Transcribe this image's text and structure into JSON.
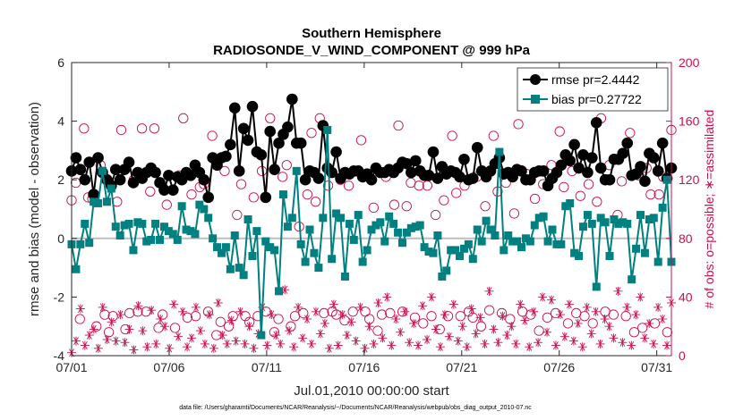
{
  "chart_data": {
    "type": "line",
    "title": "Southern Hemisphere",
    "subtitle": "RADIOSONDE_V_WIND_COMPONENT @ 999 hPa",
    "xlabel": "Jul.01,2010 00:00:00 start",
    "ylabel": "rmse and bias (model - observation)",
    "y2label": "# of obs: o=possible; ∗=assimilated",
    "footnote": "data file: /Users/gharamti/Documents/NCAR/Reanalysis/~/Documents/NCAR/Reanalysis/webpub/obs_diag_output_2010-07.nc",
    "xlim": [
      0,
      30.75
    ],
    "ylim": [
      -4,
      6
    ],
    "y2lim": [
      0,
      200
    ],
    "x_ticks": [
      0,
      5,
      10,
      15,
      20,
      25,
      30
    ],
    "x_tick_labels": [
      "07/01",
      "07/06",
      "07/11",
      "07/16",
      "07/21",
      "07/26",
      "07/31"
    ],
    "y_ticks": [
      "-4",
      "-2",
      "0",
      "2",
      "4",
      "6"
    ],
    "y2_ticks": [
      "0",
      "40",
      "80",
      "120",
      "160",
      "200"
    ],
    "zero_line": 0,
    "legend": [
      "rmse pr=2.4442",
      "bias pr=0.27722"
    ],
    "series": [
      {
        "name": "rmse pr=2.4442",
        "color": "#000000",
        "marker": "circle",
        "values": [
          2.3,
          2.75,
          2.35,
          2.0,
          2.6,
          1.5,
          2.75,
          2.25,
          2.0,
          1.8,
          2.35,
          2.0,
          2.35,
          2.6,
          1.9,
          2.25,
          2.05,
          2.25,
          2.4,
          2.25,
          1.9,
          1.65,
          2.15,
          1.65,
          2.1,
          2.0,
          2.25,
          2.15,
          2.5,
          2.25,
          2.0,
          1.4,
          2.75,
          2.5,
          2.75,
          2.8,
          3.2,
          4.45,
          2.3,
          3.75,
          3.35,
          4.5,
          2.95,
          2.85,
          1.4,
          3.65,
          2.35,
          3.25,
          3.55,
          3.8,
          4.75,
          3.25,
          3.25,
          2.0,
          2.3,
          2.25,
          2.05,
          3.85,
          2.4,
          2.25,
          2.95,
          2.05,
          2.25,
          2.2,
          2.3,
          2.3,
          2.1,
          2.2,
          2.0,
          2.4,
          2.25,
          2.25,
          2.35,
          2.25,
          2.4,
          2.6,
          2.55,
          2.25,
          2.65,
          2.3,
          2.15,
          2.15,
          2.95,
          2.05,
          2.45,
          2.2,
          2.3,
          2.25,
          2.1,
          2.7,
          2.0,
          2.05,
          3.1,
          2.3,
          2.1,
          2.3,
          2.55,
          2.75,
          2.2,
          2.25,
          2.1,
          2.35,
          2.3,
          2.0,
          2.0,
          2.25,
          2.3,
          2.3,
          1.8,
          2.05,
          2.25,
          2.5,
          2.85,
          2.65,
          3.2,
          2.4,
          2.85,
          2.25,
          2.75,
          3.95,
          2.4,
          2.0,
          2.0,
          2.7,
          2.7,
          2.9,
          3.25,
          2.15,
          2.2,
          2.45,
          1.95,
          2.9,
          2.75,
          2.3,
          3.25,
          2.05,
          2.4
        ]
      },
      {
        "name": "bias pr=0.27722",
        "color": "#008080",
        "marker": "square",
        "values": [
          -0.2,
          -1.05,
          -0.2,
          0.5,
          -0.15,
          1.25,
          1.2,
          2.3,
          1.25,
          1.7,
          0.4,
          0.1,
          0.45,
          0.5,
          -0.4,
          0.55,
          0.5,
          -0.1,
          -0.05,
          0.5,
          -0.05,
          0.4,
          0.25,
          0.15,
          -0.05,
          1.1,
          0.3,
          0.25,
          0.15,
          1.15,
          1.0,
          0.7,
          0.0,
          -0.3,
          -0.5,
          -0.3,
          -1.05,
          0.1,
          -1.0,
          -1.25,
          0.65,
          -0.6,
          0.25,
          -3.3,
          -0.1,
          -0.3,
          -0.4,
          -1.8,
          1.5,
          0.4,
          0.7,
          2.3,
          -0.2,
          -0.8,
          0.3,
          -0.5,
          -1.0,
          0.7,
          3.7,
          -0.7,
          0.85,
          0.7,
          -1.3,
          0.5,
          -0.05,
          0.8,
          -0.8,
          -0.4,
          0.3,
          0.45,
          0.55,
          -0.1,
          0.75,
          0.5,
          0.2,
          -0.15,
          0.2,
          0.35,
          0.4,
          0.45,
          -0.3,
          -0.45,
          -0.5,
          0.1,
          -1.3,
          -1.1,
          -0.4,
          -0.4,
          -0.6,
          -0.35,
          -0.2,
          -0.7,
          0.3,
          -0.1,
          0.6,
          0.3,
          0.1,
          2.95,
          -0.4,
          0.1,
          -0.1,
          -0.1,
          -0.3,
          0.0,
          -0.1,
          0.45,
          0.7,
          0.75,
          -0.1,
          0.3,
          -0.2,
          -0.2,
          1.1,
          1.2,
          -0.5,
          -0.6,
          0.4,
          0.8,
          0.5,
          -1.65,
          0.7,
          0.55,
          -0.6,
          0.65,
          0.5,
          0.55,
          0.5,
          -1.4,
          -0.35,
          0.8,
          -0.5,
          0.65,
          0.7,
          -0.8,
          1.05,
          2.0,
          -0.8
        ]
      }
    ],
    "obs_possible": {
      "name": "possible",
      "marker": "open-circle",
      "color": "#c8104f",
      "values": [
        106,
        118,
        25,
        155,
        108,
        107,
        20,
        130,
        28,
        16,
        27,
        105,
        154,
        18,
        29,
        120,
        30,
        155,
        30,
        112,
        155,
        19,
        28,
        103,
        118,
        19,
        123,
        162,
        26,
        110,
        27,
        115,
        117,
        30,
        150,
        14,
        23,
        126,
        20,
        27,
        96,
        117,
        27,
        23,
        108,
        27,
        126,
        30,
        162,
        16,
        25,
        122,
        130,
        20,
        27,
        88,
        29,
        110,
        152,
        105,
        162,
        29,
        116,
        30,
        28,
        120,
        24,
        116,
        30,
        126,
        147,
        30,
        25,
        101,
        17,
        28,
        122,
        29,
        103,
        157,
        30,
        102,
        118,
        26,
        116,
        22,
        116,
        27,
        96,
        18,
        106,
        27,
        150,
        111,
        27,
        116,
        30,
        26,
        122,
        20,
        102,
        31,
        150,
        112,
        29,
        118,
        25,
        97,
        158,
        30,
        124,
        28,
        107,
        17,
        117,
        26,
        130,
        29,
        153,
        115,
        22,
        126,
        29,
        109,
        27,
        117,
        22,
        105,
        162,
        30,
        130,
        28,
        96,
        119,
        27,
        152,
        16,
        123,
        19,
        128,
        110,
        22,
        110,
        122,
        16,
        154
      ]
    },
    "obs_assimilated": {
      "name": "assimilated",
      "marker": "asterisk",
      "color": "#c8104f",
      "values": [
        2,
        10,
        32,
        7,
        14,
        18,
        5,
        33,
        11,
        23,
        10,
        28,
        9,
        18,
        4,
        34,
        17,
        6,
        31,
        8,
        25,
        20,
        5,
        35,
        13,
        30,
        6,
        12,
        33,
        17,
        8,
        28,
        5,
        36,
        14,
        8,
        24,
        10,
        30,
        8,
        20,
        5,
        15,
        33,
        7,
        28,
        14,
        8,
        45,
        17,
        6,
        33,
        12,
        25,
        8,
        30,
        15,
        22,
        5,
        35,
        7,
        28,
        14,
        23,
        10,
        33,
        5,
        20,
        8,
        36,
        12,
        40,
        7,
        25,
        16,
        30,
        9,
        22,
        7,
        34,
        11,
        40,
        18,
        6,
        28,
        13,
        35,
        10,
        20,
        6,
        32,
        15,
        26,
        8,
        44,
        18,
        9,
        27,
        14,
        20,
        8,
        35,
        24,
        6,
        30,
        9,
        40,
        16,
        38,
        7,
        28,
        13,
        35,
        10,
        22,
        6,
        33,
        15,
        30,
        8,
        25,
        20,
        12,
        44,
        9,
        33,
        7,
        28,
        40,
        12,
        22,
        8,
        33,
        25,
        7,
        36
      ]
    }
  }
}
